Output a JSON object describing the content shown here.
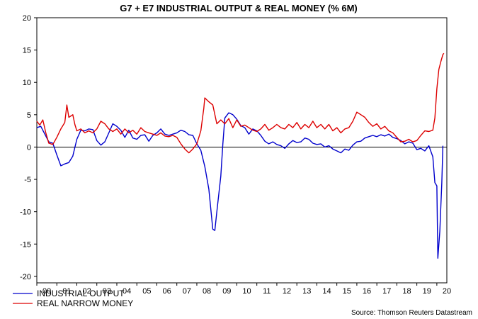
{
  "chart_data": {
    "type": "line",
    "title": "G7 + E7 INDUSTRIAL OUTPUT & REAL MONEY (% 6M)",
    "source": "Source: Thomson Reuters Datastream",
    "ylim": [
      -21,
      20
    ],
    "yticks": [
      20,
      15,
      10,
      5,
      0,
      -5,
      -10,
      -15,
      -20
    ],
    "x_ticks": [
      "00",
      "01",
      "02",
      "03",
      "04",
      "05",
      "06",
      "07",
      "08",
      "09",
      "10",
      "11",
      "12",
      "13",
      "14",
      "15",
      "16",
      "17",
      "18",
      "19",
      "20"
    ],
    "xlim": [
      2000.0,
      2020.5
    ],
    "zero_line": true,
    "grid": false,
    "legend_position": "bottom-left",
    "series": [
      {
        "name": "INDUSTRIAL OUTPUT",
        "color": "#0000cc",
        "points": [
          [
            2000.0,
            3.0
          ],
          [
            2000.2,
            3.2
          ],
          [
            2000.4,
            2.0
          ],
          [
            2000.6,
            0.8
          ],
          [
            2000.8,
            0.6
          ],
          [
            2001.0,
            -1.2
          ],
          [
            2001.2,
            -2.9
          ],
          [
            2001.4,
            -2.6
          ],
          [
            2001.6,
            -2.4
          ],
          [
            2001.8,
            -1.4
          ],
          [
            2002.0,
            1.2
          ],
          [
            2002.2,
            2.6
          ],
          [
            2002.4,
            2.5
          ],
          [
            2002.6,
            2.8
          ],
          [
            2002.8,
            2.7
          ],
          [
            2003.0,
            1.0
          ],
          [
            2003.2,
            0.3
          ],
          [
            2003.4,
            0.8
          ],
          [
            2003.6,
            2.2
          ],
          [
            2003.8,
            3.6
          ],
          [
            2004.0,
            3.2
          ],
          [
            2004.2,
            2.6
          ],
          [
            2004.4,
            1.5
          ],
          [
            2004.6,
            2.6
          ],
          [
            2004.8,
            1.4
          ],
          [
            2005.0,
            1.2
          ],
          [
            2005.2,
            1.8
          ],
          [
            2005.4,
            1.9
          ],
          [
            2005.6,
            0.9
          ],
          [
            2005.8,
            1.8
          ],
          [
            2006.0,
            2.2
          ],
          [
            2006.2,
            2.8
          ],
          [
            2006.4,
            2.0
          ],
          [
            2006.6,
            1.8
          ],
          [
            2006.8,
            2.0
          ],
          [
            2007.0,
            2.2
          ],
          [
            2007.2,
            2.6
          ],
          [
            2007.4,
            2.4
          ],
          [
            2007.6,
            1.9
          ],
          [
            2007.8,
            1.8
          ],
          [
            2008.0,
            0.5
          ],
          [
            2008.2,
            -0.5
          ],
          [
            2008.4,
            -3.0
          ],
          [
            2008.6,
            -6.5
          ],
          [
            2008.8,
            -12.7
          ],
          [
            2008.9,
            -12.9
          ],
          [
            2009.0,
            -10.0
          ],
          [
            2009.2,
            -4.5
          ],
          [
            2009.3,
            0.5
          ],
          [
            2009.4,
            4.5
          ],
          [
            2009.6,
            5.3
          ],
          [
            2009.8,
            5.0
          ],
          [
            2010.0,
            4.3
          ],
          [
            2010.2,
            3.3
          ],
          [
            2010.4,
            3.0
          ],
          [
            2010.6,
            2.0
          ],
          [
            2010.8,
            2.8
          ],
          [
            2011.0,
            2.5
          ],
          [
            2011.2,
            1.8
          ],
          [
            2011.4,
            0.9
          ],
          [
            2011.6,
            0.5
          ],
          [
            2011.8,
            0.8
          ],
          [
            2012.0,
            0.4
          ],
          [
            2012.2,
            0.2
          ],
          [
            2012.4,
            -0.2
          ],
          [
            2012.6,
            0.5
          ],
          [
            2012.8,
            1.0
          ],
          [
            2013.0,
            0.7
          ],
          [
            2013.2,
            0.8
          ],
          [
            2013.4,
            1.4
          ],
          [
            2013.6,
            1.2
          ],
          [
            2013.8,
            0.6
          ],
          [
            2014.0,
            0.4
          ],
          [
            2014.2,
            0.5
          ],
          [
            2014.4,
            0.0
          ],
          [
            2014.6,
            0.2
          ],
          [
            2014.8,
            -0.3
          ],
          [
            2015.0,
            -0.6
          ],
          [
            2015.2,
            -0.9
          ],
          [
            2015.4,
            -0.3
          ],
          [
            2015.6,
            -0.5
          ],
          [
            2015.8,
            0.3
          ],
          [
            2016.0,
            0.8
          ],
          [
            2016.2,
            0.9
          ],
          [
            2016.4,
            1.4
          ],
          [
            2016.6,
            1.6
          ],
          [
            2016.8,
            1.8
          ],
          [
            2017.0,
            1.6
          ],
          [
            2017.2,
            1.9
          ],
          [
            2017.4,
            1.7
          ],
          [
            2017.6,
            2.0
          ],
          [
            2017.8,
            1.5
          ],
          [
            2018.0,
            1.3
          ],
          [
            2018.2,
            1.0
          ],
          [
            2018.4,
            0.5
          ],
          [
            2018.6,
            0.8
          ],
          [
            2018.8,
            0.6
          ],
          [
            2019.0,
            -0.4
          ],
          [
            2019.2,
            -0.2
          ],
          [
            2019.4,
            -0.6
          ],
          [
            2019.6,
            0.2
          ],
          [
            2019.8,
            -1.5
          ],
          [
            2019.9,
            -5.5
          ],
          [
            2020.0,
            -6.0
          ],
          [
            2020.05,
            -17.2
          ],
          [
            2020.15,
            -13.0
          ],
          [
            2020.25,
            -5.5
          ],
          [
            2020.3,
            0.2
          ]
        ]
      },
      {
        "name": "REAL NARROW MONEY",
        "color": "#dd0000",
        "points": [
          [
            2000.0,
            4.0
          ],
          [
            2000.15,
            3.4
          ],
          [
            2000.3,
            4.2
          ],
          [
            2000.45,
            2.2
          ],
          [
            2000.6,
            0.6
          ],
          [
            2000.8,
            0.4
          ],
          [
            2001.0,
            1.5
          ],
          [
            2001.2,
            2.8
          ],
          [
            2001.4,
            3.8
          ],
          [
            2001.5,
            6.5
          ],
          [
            2001.6,
            4.6
          ],
          [
            2001.8,
            5.0
          ],
          [
            2001.9,
            3.5
          ],
          [
            2002.0,
            2.5
          ],
          [
            2002.2,
            2.8
          ],
          [
            2002.4,
            2.2
          ],
          [
            2002.6,
            2.5
          ],
          [
            2002.8,
            2.2
          ],
          [
            2003.0,
            2.8
          ],
          [
            2003.2,
            4.0
          ],
          [
            2003.4,
            3.6
          ],
          [
            2003.6,
            2.8
          ],
          [
            2003.8,
            2.4
          ],
          [
            2004.0,
            2.8
          ],
          [
            2004.2,
            2.0
          ],
          [
            2004.4,
            2.8
          ],
          [
            2004.6,
            2.2
          ],
          [
            2004.8,
            2.6
          ],
          [
            2005.0,
            2.0
          ],
          [
            2005.2,
            3.0
          ],
          [
            2005.4,
            2.4
          ],
          [
            2005.6,
            2.2
          ],
          [
            2005.8,
            2.0
          ],
          [
            2006.0,
            1.8
          ],
          [
            2006.2,
            2.2
          ],
          [
            2006.4,
            1.7
          ],
          [
            2006.6,
            1.6
          ],
          [
            2006.8,
            1.8
          ],
          [
            2007.0,
            1.5
          ],
          [
            2007.2,
            0.5
          ],
          [
            2007.4,
            -0.3
          ],
          [
            2007.6,
            -0.9
          ],
          [
            2007.8,
            -0.3
          ],
          [
            2008.0,
            0.5
          ],
          [
            2008.2,
            2.5
          ],
          [
            2008.35,
            6.0
          ],
          [
            2008.4,
            7.6
          ],
          [
            2008.6,
            7.0
          ],
          [
            2008.8,
            6.5
          ],
          [
            2009.0,
            3.6
          ],
          [
            2009.2,
            4.2
          ],
          [
            2009.4,
            3.6
          ],
          [
            2009.6,
            4.4
          ],
          [
            2009.8,
            3.0
          ],
          [
            2010.0,
            4.2
          ],
          [
            2010.2,
            3.2
          ],
          [
            2010.4,
            3.4
          ],
          [
            2010.6,
            3.0
          ],
          [
            2010.8,
            2.6
          ],
          [
            2011.0,
            2.4
          ],
          [
            2011.2,
            2.8
          ],
          [
            2011.4,
            3.5
          ],
          [
            2011.6,
            2.6
          ],
          [
            2011.8,
            3.0
          ],
          [
            2012.0,
            3.5
          ],
          [
            2012.2,
            3.0
          ],
          [
            2012.4,
            2.8
          ],
          [
            2012.6,
            3.5
          ],
          [
            2012.8,
            3.0
          ],
          [
            2013.0,
            3.8
          ],
          [
            2013.2,
            2.8
          ],
          [
            2013.4,
            3.5
          ],
          [
            2013.6,
            3.0
          ],
          [
            2013.8,
            4.0
          ],
          [
            2014.0,
            3.0
          ],
          [
            2014.2,
            3.5
          ],
          [
            2014.4,
            2.8
          ],
          [
            2014.6,
            3.5
          ],
          [
            2014.8,
            2.5
          ],
          [
            2015.0,
            3.0
          ],
          [
            2015.2,
            2.2
          ],
          [
            2015.4,
            2.8
          ],
          [
            2015.6,
            3.0
          ],
          [
            2015.8,
            4.0
          ],
          [
            2016.0,
            5.4
          ],
          [
            2016.2,
            5.0
          ],
          [
            2016.4,
            4.6
          ],
          [
            2016.6,
            3.8
          ],
          [
            2016.8,
            3.2
          ],
          [
            2017.0,
            3.6
          ],
          [
            2017.2,
            2.8
          ],
          [
            2017.4,
            3.2
          ],
          [
            2017.6,
            2.5
          ],
          [
            2017.8,
            2.2
          ],
          [
            2018.0,
            1.5
          ],
          [
            2018.2,
            0.8
          ],
          [
            2018.4,
            0.9
          ],
          [
            2018.6,
            1.2
          ],
          [
            2018.8,
            0.8
          ],
          [
            2019.0,
            1.0
          ],
          [
            2019.2,
            1.8
          ],
          [
            2019.4,
            2.5
          ],
          [
            2019.6,
            2.4
          ],
          [
            2019.8,
            2.6
          ],
          [
            2019.9,
            4.5
          ],
          [
            2020.0,
            9.0
          ],
          [
            2020.1,
            12.0
          ],
          [
            2020.2,
            13.2
          ],
          [
            2020.3,
            14.3
          ],
          [
            2020.35,
            14.5
          ]
        ]
      }
    ]
  }
}
